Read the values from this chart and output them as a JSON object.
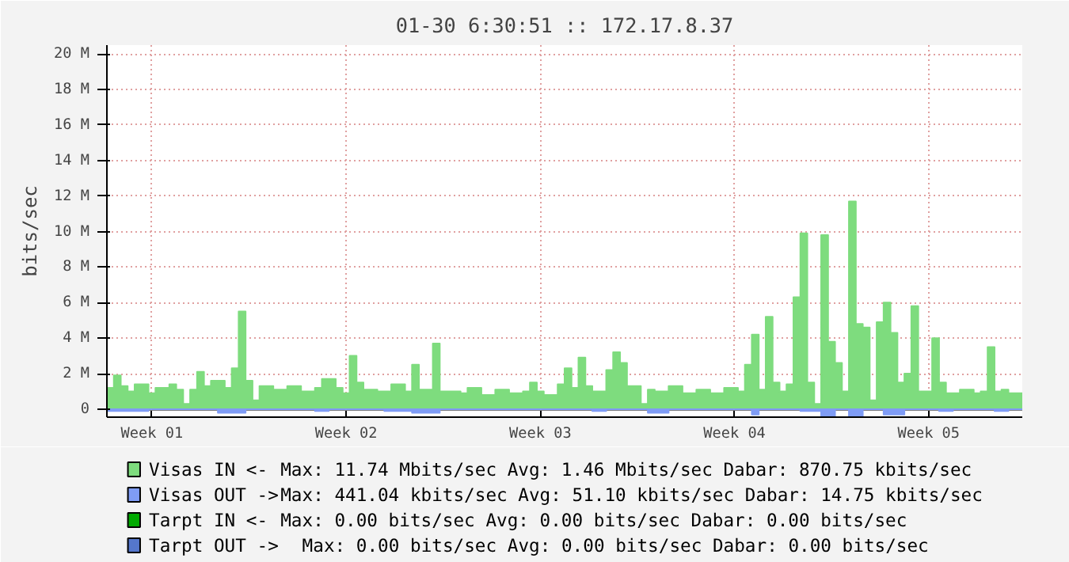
{
  "chart_data": {
    "type": "area",
    "title": "01-30 6:30:51 :: 172.17.8.37",
    "ylabel": "bits/sec",
    "categories": [
      null,
      null,
      null,
      null,
      null,
      null,
      "Week 01",
      null,
      null,
      null,
      null,
      null,
      null,
      null,
      null,
      null,
      null,
      null,
      null,
      null,
      null,
      null,
      null,
      null,
      null,
      null,
      null,
      null,
      null,
      null,
      null,
      null,
      null,
      null,
      "Week 02",
      null,
      null,
      null,
      null,
      null,
      null,
      null,
      null,
      null,
      null,
      null,
      null,
      null,
      null,
      null,
      null,
      null,
      null,
      null,
      null,
      null,
      null,
      null,
      null,
      null,
      null,
      null,
      "Week 03",
      null,
      null,
      null,
      null,
      null,
      null,
      null,
      null,
      null,
      null,
      null,
      null,
      null,
      null,
      null,
      null,
      null,
      null,
      null,
      null,
      null,
      null,
      null,
      null,
      null,
      null,
      null,
      "Week 04",
      null,
      null,
      null,
      null,
      null,
      null,
      null,
      null,
      null,
      null,
      null,
      null,
      null,
      null,
      null,
      null,
      null,
      null,
      null,
      null,
      null,
      null,
      null,
      null,
      null,
      null,
      null,
      "Week 05",
      null,
      null,
      null,
      null,
      null,
      null,
      null,
      null,
      null,
      null,
      null,
      null,
      null
    ],
    "ylim": [
      -0.45,
      20.5
    ],
    "yticks": [
      0,
      {
        "value": 2,
        "label": "2 M"
      },
      {
        "value": 4,
        "label": "4 M"
      },
      {
        "value": 6,
        "label": "6 M"
      },
      {
        "value": 8,
        "label": "8 M"
      },
      {
        "value": 10,
        "label": "10 M"
      },
      {
        "value": 12,
        "label": "12 M"
      },
      {
        "value": 14,
        "label": "14 M"
      },
      {
        "value": 16,
        "label": "16 M"
      },
      {
        "value": 18,
        "label": "18 M"
      },
      {
        "value": 20,
        "label": "20 M"
      }
    ],
    "grid": true,
    "legend": "bottom",
    "series": [
      {
        "name": "Visas IN  <-",
        "color": "#7edc7e",
        "values": [
          1.2,
          1.9,
          1.3,
          1.0,
          1.4,
          1.4,
          0.9,
          1.2,
          1.2,
          1.4,
          1.1,
          0.3,
          1.1,
          2.1,
          1.3,
          1.6,
          1.6,
          1.2,
          2.3,
          5.5,
          1.6,
          0.5,
          1.3,
          1.3,
          1.1,
          1.1,
          1.3,
          1.3,
          1.0,
          1.0,
          1.2,
          1.7,
          1.7,
          1.2,
          0.9,
          3.0,
          1.5,
          1.1,
          1.1,
          1.0,
          1.0,
          1.4,
          1.4,
          1.0,
          2.5,
          1.1,
          1.1,
          3.7,
          1.0,
          1.0,
          1.0,
          0.9,
          1.2,
          1.2,
          0.8,
          0.8,
          1.1,
          1.1,
          0.9,
          0.9,
          1.0,
          1.5,
          1.0,
          0.8,
          0.8,
          1.4,
          2.3,
          1.2,
          2.9,
          1.3,
          1.0,
          1.0,
          2.2,
          3.2,
          2.6,
          1.3,
          1.3,
          0.3,
          1.1,
          1.0,
          1.0,
          1.3,
          1.3,
          0.9,
          0.9,
          1.1,
          1.1,
          0.9,
          0.9,
          1.2,
          1.2,
          1.0,
          2.5,
          4.2,
          1.1,
          5.2,
          1.5,
          1.0,
          1.4,
          6.3,
          9.9,
          1.5,
          0.3,
          9.8,
          3.8,
          2.6,
          1.0,
          11.7,
          4.8,
          4.6,
          0.5,
          4.9,
          6.0,
          4.3,
          1.5,
          2.0,
          5.8,
          1.0,
          1.0,
          4.0,
          1.5,
          0.9,
          0.9,
          1.1,
          1.1,
          0.9,
          1.0,
          3.5,
          1.0,
          1.1,
          0.9,
          0.9
        ]
      },
      {
        "name": "Visas OUT ->",
        "color": "#7f9cf5",
        "values": [
          -0.1,
          -0.1,
          -0.1,
          -0.1,
          -0.1,
          -0.1,
          0,
          0,
          0,
          0,
          0,
          0,
          0,
          0,
          0,
          0,
          -0.2,
          -0.2,
          -0.2,
          -0.2,
          0,
          0,
          0,
          0,
          0,
          0,
          0,
          0,
          0,
          0,
          -0.1,
          -0.1,
          0,
          0,
          0,
          0,
          0,
          0,
          0,
          0,
          -0.1,
          -0.1,
          -0.1,
          -0.1,
          -0.2,
          -0.2,
          -0.2,
          -0.2,
          0,
          0,
          0,
          0,
          0,
          0,
          0,
          0,
          0,
          0,
          0,
          0,
          0,
          0,
          0,
          0,
          0,
          0,
          0,
          0,
          0,
          0,
          -0.1,
          -0.1,
          0,
          0,
          0,
          0,
          0,
          0,
          -0.2,
          -0.2,
          -0.2,
          0,
          0,
          0,
          0,
          0,
          0,
          0,
          0,
          0,
          0,
          0,
          0,
          -0.3,
          0,
          0,
          0,
          0,
          0,
          0,
          -0.1,
          -0.1,
          -0.1,
          -0.4,
          -0.4,
          0,
          0,
          -0.4,
          -0.4,
          0,
          0,
          0,
          -0.3,
          -0.3,
          -0.3,
          0,
          0,
          0,
          0,
          0,
          -0.1,
          -0.1,
          0,
          0,
          0,
          0,
          0,
          0,
          -0.1,
          -0.1,
          0,
          0
        ]
      },
      {
        "name": "Tarpt IN  <-",
        "color": "#00aa00",
        "values": [
          null,
          null,
          null,
          null,
          null,
          null,
          null,
          null,
          null,
          null,
          null,
          null,
          null,
          null,
          null,
          null,
          null,
          null,
          null,
          null,
          null,
          null,
          null,
          null,
          null,
          null,
          null,
          null,
          null,
          null,
          null,
          null,
          null,
          null,
          null,
          null,
          null,
          null,
          null,
          null,
          null,
          null,
          null,
          null,
          null,
          null,
          null,
          null,
          null,
          null,
          null,
          null,
          null,
          null,
          null,
          null,
          null,
          null,
          null,
          null,
          null,
          null,
          null,
          null,
          null,
          null,
          null,
          null,
          null,
          null,
          null,
          null,
          null,
          null,
          null,
          null,
          null,
          null,
          null,
          null,
          null,
          null,
          null,
          null,
          null,
          null,
          null,
          null,
          null,
          null,
          null,
          null,
          null,
          null,
          null,
          null,
          null,
          null,
          null,
          null,
          null,
          null,
          null,
          null,
          null,
          null,
          null,
          null,
          null,
          null,
          null,
          null,
          null,
          null,
          null,
          null,
          null,
          null,
          null,
          null,
          null,
          null,
          null,
          null,
          null,
          null,
          null,
          null,
          null,
          null,
          null,
          null
        ]
      },
      {
        "name": "Tarpt OUT ->",
        "color": "#5577cc",
        "values": [
          null,
          null,
          null,
          null,
          null,
          null,
          null,
          null,
          null,
          null,
          null,
          null,
          null,
          null,
          null,
          null,
          null,
          null,
          null,
          null,
          null,
          null,
          null,
          null,
          null,
          null,
          null,
          null,
          null,
          null,
          null,
          null,
          null,
          null,
          null,
          null,
          null,
          null,
          null,
          null,
          null,
          null,
          null,
          null,
          null,
          null,
          null,
          null,
          null,
          null,
          null,
          null,
          null,
          null,
          null,
          null,
          null,
          null,
          null,
          null,
          null,
          null,
          null,
          null,
          null,
          null,
          null,
          null,
          null,
          null,
          null,
          null,
          null,
          null,
          null,
          null,
          null,
          null,
          null,
          null,
          null,
          null,
          null,
          null,
          null,
          null,
          null,
          null,
          null,
          null,
          null,
          null,
          null,
          null,
          null,
          null,
          null,
          null,
          null,
          null,
          null,
          null,
          null,
          null,
          null,
          null,
          null,
          null,
          null,
          null,
          null,
          null,
          null,
          null,
          null,
          null,
          null,
          null,
          null,
          null,
          null,
          null,
          null,
          null,
          null,
          null,
          null,
          null,
          null,
          null,
          null,
          null
        ]
      }
    ],
    "annotations": [
      "Max:  11.74 Mbits/sec   Avg:   1.46 Mbits/sec   Dabar: 870.75 kbits/sec",
      "Max: 441.04 kbits/sec   Avg:  51.10 kbits/sec   Dabar:  14.75 kbits/sec",
      "Max:   0.00  bits/sec   Avg:   0.00  bits/sec   Dabar:   0.00  bits/sec",
      "Max:   0.00  bits/sec    Avg:   0.00  bits/sec    Dabar:   0.00  bits/sec"
    ]
  }
}
